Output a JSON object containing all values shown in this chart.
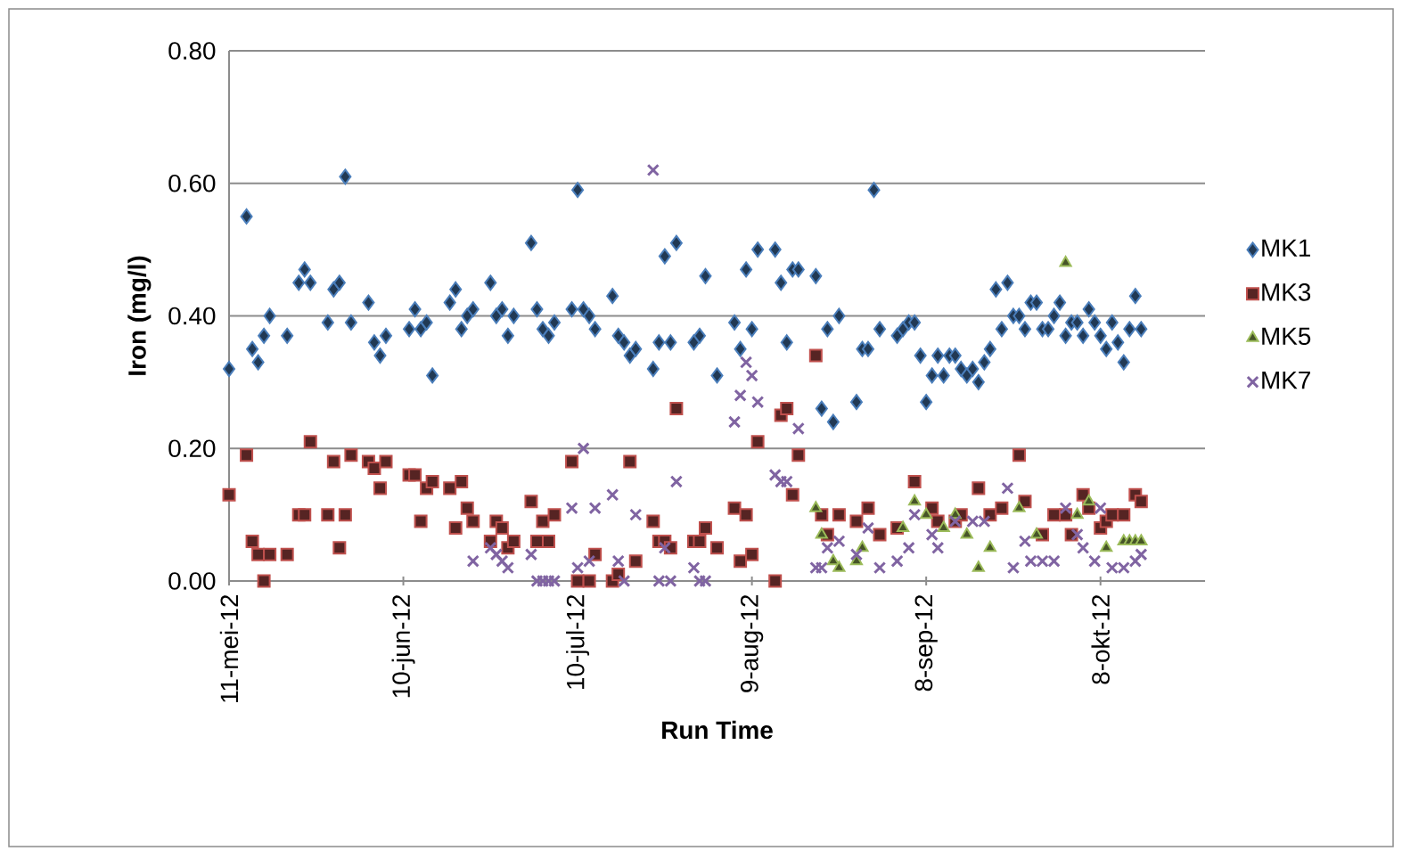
{
  "chart_data": {
    "type": "scatter",
    "xlabel": "Run Time",
    "ylabel": "Iron (mg/l)",
    "grid": "y",
    "legend": "right",
    "xlim": [
      "2012-05-11",
      "2012-10-26"
    ],
    "xticks": [
      {
        "value": "2012-05-11",
        "label": "11-mei-12"
      },
      {
        "value": "2012-06-10",
        "label": "10-jun-12"
      },
      {
        "value": "2012-07-10",
        "label": "10-jul-12"
      },
      {
        "value": "2012-08-09",
        "label": "9-aug-12"
      },
      {
        "value": "2012-09-08",
        "label": "8-sep-12"
      },
      {
        "value": "2012-10-08",
        "label": "8-okt-12"
      }
    ],
    "ylim": [
      0,
      0.8
    ],
    "yticks": [
      {
        "value": 0,
        "label": "0.00"
      },
      {
        "value": 0.2,
        "label": "0.20"
      },
      {
        "value": 0.4,
        "label": "0.40"
      },
      {
        "value": 0.6,
        "label": "0.60"
      },
      {
        "value": 0.8,
        "label": "0.80"
      }
    ],
    "series": [
      {
        "name": "MK1",
        "color": "#4a7ebb",
        "marker": "diamond",
        "x": [
          "2012-05-11",
          "2012-05-14",
          "2012-05-15",
          "2012-05-16",
          "2012-05-17",
          "2012-05-18",
          "2012-05-21",
          "2012-05-23",
          "2012-05-24",
          "2012-05-25",
          "2012-05-28",
          "2012-05-29",
          "2012-05-30",
          "2012-05-31",
          "2012-06-01",
          "2012-06-04",
          "2012-06-05",
          "2012-06-06",
          "2012-06-07",
          "2012-06-11",
          "2012-06-12",
          "2012-06-13",
          "2012-06-14",
          "2012-06-15",
          "2012-06-18",
          "2012-06-19",
          "2012-06-20",
          "2012-06-21",
          "2012-06-22",
          "2012-06-25",
          "2012-06-26",
          "2012-06-27",
          "2012-06-28",
          "2012-06-29",
          "2012-07-02",
          "2012-07-03",
          "2012-07-04",
          "2012-07-05",
          "2012-07-06",
          "2012-07-09",
          "2012-07-10",
          "2012-07-11",
          "2012-07-12",
          "2012-07-13",
          "2012-07-16",
          "2012-07-17",
          "2012-07-18",
          "2012-07-19",
          "2012-07-20",
          "2012-07-23",
          "2012-07-24",
          "2012-07-25",
          "2012-07-26",
          "2012-07-27",
          "2012-07-30",
          "2012-07-31",
          "2012-08-01",
          "2012-08-03",
          "2012-08-06",
          "2012-08-07",
          "2012-08-08",
          "2012-08-09",
          "2012-08-10",
          "2012-08-13",
          "2012-08-14",
          "2012-08-15",
          "2012-08-16",
          "2012-08-17",
          "2012-08-20",
          "2012-08-21",
          "2012-08-22",
          "2012-08-23",
          "2012-08-24",
          "2012-08-27",
          "2012-08-28",
          "2012-08-29",
          "2012-08-30",
          "2012-08-31",
          "2012-09-03",
          "2012-09-04",
          "2012-09-05",
          "2012-09-06",
          "2012-09-07",
          "2012-09-08",
          "2012-09-09",
          "2012-09-10",
          "2012-09-11",
          "2012-09-12",
          "2012-09-13",
          "2012-09-14",
          "2012-09-15",
          "2012-09-16",
          "2012-09-17",
          "2012-09-18",
          "2012-09-19",
          "2012-09-20",
          "2012-09-21",
          "2012-09-22",
          "2012-09-23",
          "2012-09-24",
          "2012-09-25",
          "2012-09-26",
          "2012-09-27",
          "2012-09-28",
          "2012-09-29",
          "2012-09-30",
          "2012-10-01",
          "2012-10-02",
          "2012-10-03",
          "2012-10-04",
          "2012-10-05",
          "2012-10-06",
          "2012-10-07",
          "2012-10-08",
          "2012-10-09",
          "2012-10-10",
          "2012-10-11",
          "2012-10-12",
          "2012-10-13",
          "2012-10-14",
          "2012-10-15"
        ],
        "values": [
          0.32,
          0.55,
          0.35,
          0.33,
          0.37,
          0.4,
          0.37,
          0.45,
          0.47,
          0.45,
          0.39,
          0.44,
          0.45,
          0.61,
          0.39,
          0.42,
          0.36,
          0.34,
          0.37,
          0.38,
          0.41,
          0.38,
          0.39,
          0.31,
          0.42,
          0.44,
          0.38,
          0.4,
          0.41,
          0.45,
          0.4,
          0.41,
          0.37,
          0.4,
          0.51,
          0.41,
          0.38,
          0.37,
          0.39,
          0.41,
          0.59,
          0.41,
          0.4,
          0.38,
          0.43,
          0.37,
          0.36,
          0.34,
          0.35,
          0.32,
          0.36,
          0.49,
          0.36,
          0.51,
          0.36,
          0.37,
          0.46,
          0.31,
          0.39,
          0.35,
          0.47,
          0.38,
          0.5,
          0.5,
          0.45,
          0.36,
          0.47,
          0.47,
          0.46,
          0.26,
          0.38,
          0.24,
          0.4,
          0.27,
          0.35,
          0.35,
          0.59,
          0.38,
          0.37,
          0.38,
          0.39,
          0.39,
          0.34,
          0.27,
          0.31,
          0.34,
          0.31,
          0.34,
          0.34,
          0.32,
          0.31,
          0.32,
          0.3,
          0.33,
          0.35,
          0.44,
          0.38,
          0.45,
          0.4,
          0.4,
          0.38,
          0.42,
          0.42,
          0.38,
          0.38,
          0.4,
          0.42,
          0.37,
          0.39,
          0.39,
          0.37,
          0.41,
          0.39,
          0.37,
          0.35,
          0.39,
          0.36,
          0.33,
          0.38,
          0.43,
          0.38
        ]
      },
      {
        "name": "MK3",
        "color": "#c0504d",
        "marker": "square",
        "x": [
          "2012-05-11",
          "2012-05-14",
          "2012-05-15",
          "2012-05-16",
          "2012-05-17",
          "2012-05-18",
          "2012-05-21",
          "2012-05-23",
          "2012-05-24",
          "2012-05-25",
          "2012-05-28",
          "2012-05-29",
          "2012-05-30",
          "2012-05-31",
          "2012-06-01",
          "2012-06-04",
          "2012-06-05",
          "2012-06-06",
          "2012-06-07",
          "2012-06-11",
          "2012-06-12",
          "2012-06-13",
          "2012-06-14",
          "2012-06-15",
          "2012-06-18",
          "2012-06-19",
          "2012-06-20",
          "2012-06-21",
          "2012-06-22",
          "2012-06-25",
          "2012-06-26",
          "2012-06-27",
          "2012-06-28",
          "2012-06-29",
          "2012-07-02",
          "2012-07-03",
          "2012-07-04",
          "2012-07-05",
          "2012-07-06",
          "2012-07-09",
          "2012-07-10",
          "2012-07-12",
          "2012-07-13",
          "2012-07-16",
          "2012-07-17",
          "2012-07-19",
          "2012-07-20",
          "2012-07-23",
          "2012-07-24",
          "2012-07-25",
          "2012-07-26",
          "2012-07-27",
          "2012-07-30",
          "2012-07-31",
          "2012-08-01",
          "2012-08-03",
          "2012-08-06",
          "2012-08-07",
          "2012-08-08",
          "2012-08-09",
          "2012-08-10",
          "2012-08-13",
          "2012-08-14",
          "2012-08-15",
          "2012-08-16",
          "2012-08-17",
          "2012-08-20",
          "2012-08-21",
          "2012-08-22",
          "2012-08-24",
          "2012-08-27",
          "2012-08-29",
          "2012-08-31",
          "2012-09-03",
          "2012-09-06",
          "2012-09-09",
          "2012-09-10",
          "2012-09-13",
          "2012-09-14",
          "2012-09-17",
          "2012-09-19",
          "2012-09-21",
          "2012-09-24",
          "2012-09-25",
          "2012-09-28",
          "2012-09-30",
          "2012-10-02",
          "2012-10-03",
          "2012-10-05",
          "2012-10-06",
          "2012-10-08",
          "2012-10-09",
          "2012-10-10",
          "2012-10-12",
          "2012-10-14",
          "2012-10-15"
        ],
        "values": [
          0.13,
          0.19,
          0.06,
          0.04,
          0.0,
          0.04,
          0.04,
          0.1,
          0.1,
          0.21,
          0.1,
          0.18,
          0.05,
          0.1,
          0.19,
          0.18,
          0.17,
          0.14,
          0.18,
          0.16,
          0.16,
          0.09,
          0.14,
          0.15,
          0.14,
          0.08,
          0.15,
          0.11,
          0.09,
          0.06,
          0.09,
          0.08,
          0.05,
          0.06,
          0.12,
          0.06,
          0.09,
          0.06,
          0.1,
          0.18,
          0.0,
          0.0,
          0.04,
          0.0,
          0.01,
          0.18,
          0.03,
          0.09,
          0.06,
          0.06,
          0.05,
          0.26,
          0.06,
          0.06,
          0.08,
          0.05,
          0.11,
          0.03,
          0.1,
          0.04,
          0.21,
          0.0,
          0.25,
          0.26,
          0.13,
          0.19,
          0.34,
          0.1,
          0.07,
          0.1,
          0.09,
          0.11,
          0.07,
          0.08,
          0.15,
          0.11,
          0.09,
          0.09,
          0.1,
          0.14,
          0.1,
          0.11,
          0.19,
          0.12,
          0.07,
          0.1,
          0.1,
          0.07,
          0.13,
          0.11,
          0.08,
          0.09,
          0.1,
          0.1,
          0.13,
          0.12
        ]
      },
      {
        "name": "MK5",
        "color": "#9bbb59",
        "marker": "triangle",
        "x": [
          "2012-08-20",
          "2012-08-21",
          "2012-08-23",
          "2012-08-24",
          "2012-08-27",
          "2012-08-28",
          "2012-09-04",
          "2012-09-06",
          "2012-09-08",
          "2012-09-11",
          "2012-09-13",
          "2012-09-15",
          "2012-09-17",
          "2012-09-19",
          "2012-09-24",
          "2012-09-27",
          "2012-10-02",
          "2012-10-04",
          "2012-10-06",
          "2012-10-09",
          "2012-10-12",
          "2012-10-13",
          "2012-10-14",
          "2012-10-15"
        ],
        "values": [
          0.11,
          0.07,
          0.03,
          0.02,
          0.03,
          0.05,
          0.08,
          0.12,
          0.1,
          0.08,
          0.1,
          0.07,
          0.02,
          0.05,
          0.11,
          0.07,
          0.48,
          0.1,
          0.12,
          0.05,
          0.06,
          0.06,
          0.06,
          0.06
        ]
      },
      {
        "name": "MK7",
        "color": "#8064a2",
        "marker": "cross",
        "x": [
          "2012-06-22",
          "2012-06-25",
          "2012-06-26",
          "2012-06-27",
          "2012-06-28",
          "2012-07-02",
          "2012-07-03",
          "2012-07-04",
          "2012-07-05",
          "2012-07-06",
          "2012-07-09",
          "2012-07-10",
          "2012-07-11",
          "2012-07-12",
          "2012-07-13",
          "2012-07-16",
          "2012-07-17",
          "2012-07-18",
          "2012-07-20",
          "2012-07-23",
          "2012-07-24",
          "2012-07-25",
          "2012-07-26",
          "2012-07-27",
          "2012-07-30",
          "2012-07-31",
          "2012-08-01",
          "2012-08-06",
          "2012-08-07",
          "2012-08-08",
          "2012-08-09",
          "2012-08-10",
          "2012-08-13",
          "2012-08-14",
          "2012-08-15",
          "2012-08-17",
          "2012-08-20",
          "2012-08-21",
          "2012-08-22",
          "2012-08-24",
          "2012-08-27",
          "2012-08-29",
          "2012-08-31",
          "2012-09-03",
          "2012-09-05",
          "2012-09-06",
          "2012-09-09",
          "2012-09-10",
          "2012-09-13",
          "2012-09-16",
          "2012-09-18",
          "2012-09-22",
          "2012-09-23",
          "2012-09-25",
          "2012-09-26",
          "2012-09-28",
          "2012-09-30",
          "2012-10-02",
          "2012-10-04",
          "2012-10-05",
          "2012-10-07",
          "2012-10-08",
          "2012-10-10",
          "2012-10-12",
          "2012-10-14",
          "2012-10-15"
        ],
        "values": [
          0.03,
          0.05,
          0.04,
          0.03,
          0.02,
          0.04,
          0.0,
          0.0,
          0.0,
          0.0,
          0.11,
          0.02,
          0.2,
          0.03,
          0.11,
          0.13,
          0.03,
          0.0,
          0.1,
          0.62,
          0.0,
          0.05,
          0.0,
          0.15,
          0.02,
          0.0,
          0.0,
          0.24,
          0.28,
          0.33,
          0.31,
          0.27,
          0.16,
          0.15,
          0.15,
          0.23,
          0.02,
          0.02,
          0.05,
          0.06,
          0.04,
          0.08,
          0.02,
          0.03,
          0.05,
          0.1,
          0.07,
          0.05,
          0.09,
          0.09,
          0.09,
          0.14,
          0.02,
          0.06,
          0.03,
          0.03,
          0.03,
          0.11,
          0.07,
          0.05,
          0.03,
          0.11,
          0.02,
          0.02,
          0.03,
          0.04
        ]
      }
    ]
  }
}
